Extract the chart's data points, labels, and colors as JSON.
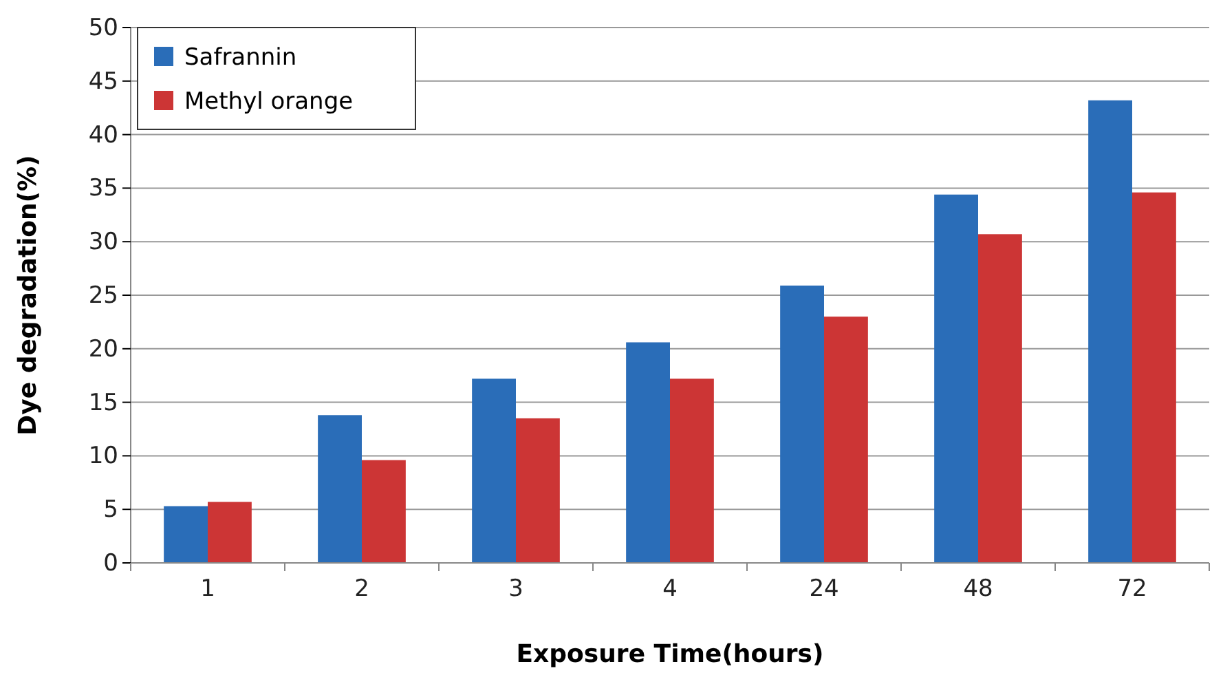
{
  "chart_data": {
    "type": "bar",
    "xlabel": "Exposure Time(hours)",
    "ylabel": "Dye degradation(%)",
    "categories": [
      "1",
      "2",
      "3",
      "4",
      "24",
      "48",
      "72"
    ],
    "series": [
      {
        "name": "Safrannin",
        "color": "#2a6db8",
        "values": [
          5.3,
          13.8,
          17.2,
          20.6,
          25.9,
          34.4,
          43.2
        ]
      },
      {
        "name": "Methyl orange",
        "color": "#cc3535",
        "values": [
          5.7,
          9.6,
          13.5,
          17.2,
          23.0,
          30.7,
          34.6
        ]
      }
    ],
    "ylim": [
      0,
      50
    ],
    "yticks": [
      0,
      5,
      10,
      15,
      20,
      25,
      30,
      35,
      40,
      45,
      50
    ],
    "grid": "y",
    "legend": "top left"
  }
}
